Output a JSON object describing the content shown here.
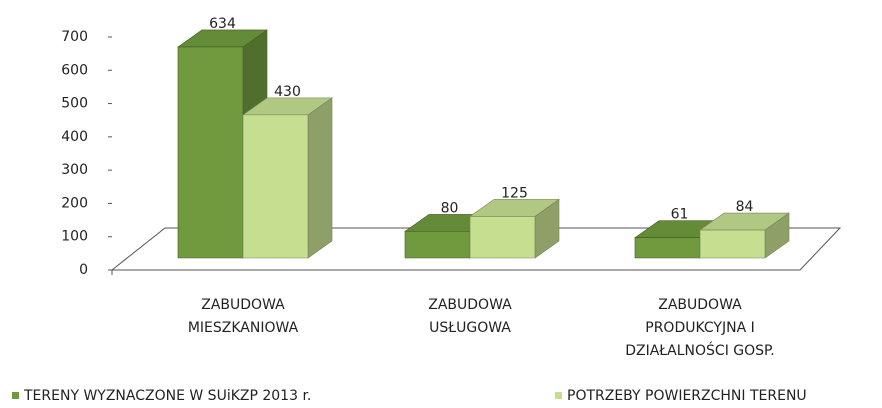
{
  "chart_data": {
    "type": "bar3d",
    "categories": [
      [
        "ZABUDOWA",
        "MIESZKANIOWA"
      ],
      [
        "ZABUDOWA",
        "USŁUGOWA"
      ],
      [
        "ZABUDOWA",
        "PRODUKCYJNA I",
        "DZIAŁALNOŚCI GOSP."
      ]
    ],
    "series": [
      {
        "name": "TERENY WYZNACZONE W SUiKZP 2013 r.",
        "color": "#6f9a3e",
        "values": [
          634,
          80,
          61
        ]
      },
      {
        "name": "POTRZEBY POWIERZCHNI TERENU",
        "color": "#c5de90",
        "values": [
          430,
          125,
          84
        ]
      }
    ],
    "ylim": [
      0,
      700
    ],
    "yticks": [
      0,
      100,
      200,
      300,
      400,
      500,
      600,
      700
    ]
  }
}
